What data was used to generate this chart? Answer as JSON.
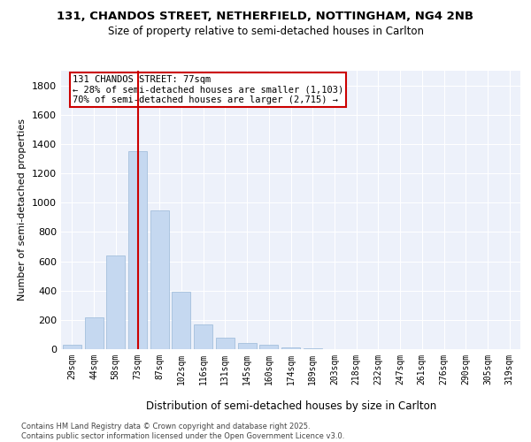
{
  "title1": "131, CHANDOS STREET, NETHERFIELD, NOTTINGHAM, NG4 2NB",
  "title2": "Size of property relative to semi-detached houses in Carlton",
  "xlabel": "Distribution of semi-detached houses by size in Carlton",
  "ylabel": "Number of semi-detached properties",
  "categories": [
    "29sqm",
    "44sqm",
    "58sqm",
    "73sqm",
    "87sqm",
    "102sqm",
    "116sqm",
    "131sqm",
    "145sqm",
    "160sqm",
    "174sqm",
    "189sqm",
    "203sqm",
    "218sqm",
    "232sqm",
    "247sqm",
    "261sqm",
    "276sqm",
    "290sqm",
    "305sqm",
    "319sqm"
  ],
  "values": [
    30,
    215,
    640,
    1350,
    950,
    390,
    170,
    80,
    45,
    30,
    15,
    5,
    2,
    0,
    0,
    0,
    0,
    0,
    0,
    0,
    0
  ],
  "bar_color": "#c5d8f0",
  "bar_edgecolor": "#9ab8d8",
  "vline_color": "#cc0000",
  "vline_index": 3.0,
  "annotation_text": "131 CHANDOS STREET: 77sqm\n← 28% of semi-detached houses are smaller (1,103)\n70% of semi-detached houses are larger (2,715) →",
  "box_edgecolor": "#cc0000",
  "ylim": [
    0,
    1900
  ],
  "yticks": [
    0,
    200,
    400,
    600,
    800,
    1000,
    1200,
    1400,
    1600,
    1800
  ],
  "bg_color": "#edf1fa",
  "grid_color": "#ffffff",
  "footer": "Contains HM Land Registry data © Crown copyright and database right 2025.\nContains public sector information licensed under the Open Government Licence v3.0."
}
